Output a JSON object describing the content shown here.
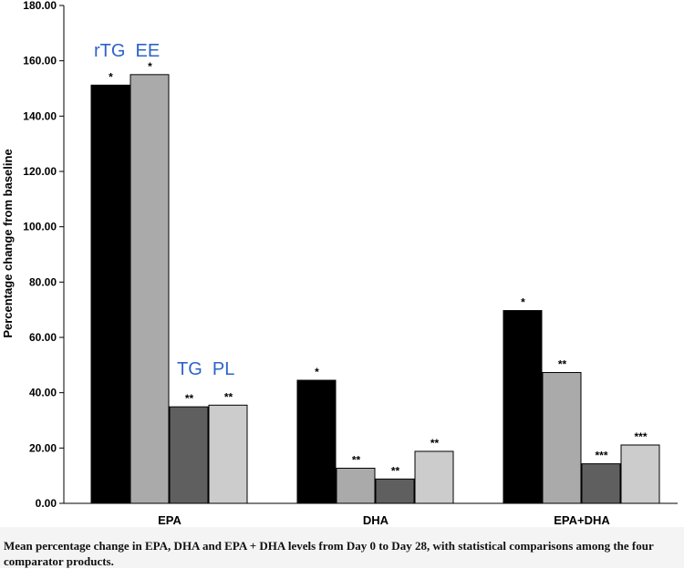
{
  "chart_data": {
    "type": "bar",
    "categories": [
      "EPA",
      "DHA",
      "EPA+DHA"
    ],
    "series": [
      {
        "name": "rTG",
        "values": [
          151.2,
          44.5,
          69.7
        ],
        "significance": [
          "*",
          "*",
          "*"
        ],
        "color": "#000000"
      },
      {
        "name": "EE",
        "values": [
          155.0,
          12.7,
          47.3
        ],
        "significance": [
          "*",
          "**",
          "**"
        ],
        "color": "#aaaaaa"
      },
      {
        "name": "TG",
        "values": [
          34.9,
          8.8,
          14.3
        ],
        "significance": [
          "**",
          "**",
          "***"
        ],
        "color": "#5f5f5f"
      },
      {
        "name": "PL",
        "values": [
          35.5,
          18.8,
          21.1
        ],
        "significance": [
          "**",
          "**",
          "***"
        ],
        "color": "#cccccc"
      }
    ],
    "ylabel": "Percentage change from baseline",
    "xlabel": "",
    "ylim": [
      0,
      180
    ],
    "yticks": [
      "0.00",
      "20.00",
      "40.00",
      "60.00",
      "80.00",
      "100.00",
      "120.00",
      "140.00",
      "160.00",
      "180.00"
    ],
    "grid": false,
    "legend": "inline annotations above EPA bars"
  },
  "annotations": {
    "rtg_ee": "rTG  EE",
    "tg_pl": "TG  PL"
  },
  "caption": "Mean percentage change in EPA, DHA and EPA + DHA levels from Day 0 to Day 28, with statistical comparisons among the four comparator products."
}
